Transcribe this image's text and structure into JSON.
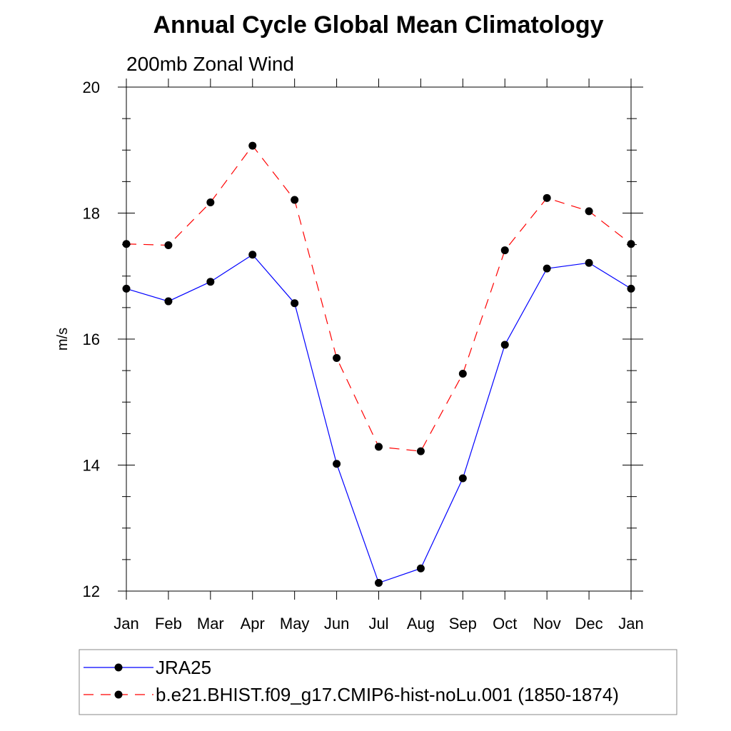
{
  "chart_data": {
    "type": "line",
    "title": "Annual Cycle Global Mean Climatology",
    "subtitle": "200mb Zonal Wind",
    "xlabel": "",
    "ylabel": "m/s",
    "categories": [
      "Jan",
      "Feb",
      "Mar",
      "Apr",
      "May",
      "Jun",
      "Jul",
      "Aug",
      "Sep",
      "Oct",
      "Nov",
      "Dec",
      "Jan"
    ],
    "ylim": [
      12,
      20
    ],
    "yticks": [
      "12",
      "14",
      "16",
      "18",
      "20"
    ],
    "grid": false,
    "legend_position": "bottom",
    "series": [
      {
        "name": "JRA25",
        "color": "#0000ff",
        "dash": "solid",
        "values": [
          16.8,
          16.6,
          16.91,
          17.34,
          16.57,
          14.02,
          12.13,
          12.36,
          13.79,
          15.91,
          17.12,
          17.21,
          16.8
        ]
      },
      {
        "name": "b.e21.BHIST.f09_g17.CMIP6-hist-noLu.001 (1850-1874)",
        "color": "#ff0000",
        "dash": "dashed",
        "values": [
          17.51,
          17.49,
          18.17,
          19.07,
          18.21,
          15.7,
          14.29,
          14.22,
          15.45,
          17.41,
          18.24,
          18.03,
          17.51
        ]
      }
    ]
  }
}
